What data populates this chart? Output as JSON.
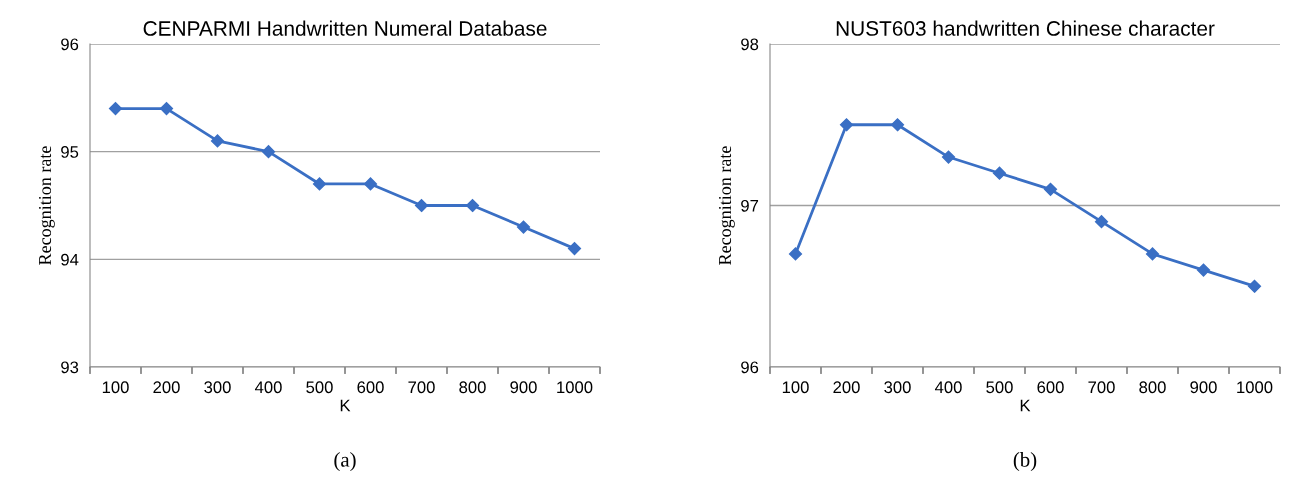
{
  "chart_data": [
    {
      "type": "line",
      "title": "CENPARMI Handwritten Numeral Database",
      "xlabel": "K",
      "ylabel": "Recognition rate",
      "annotations": [
        "(a)"
      ],
      "categories": [
        "100",
        "200",
        "300",
        "400",
        "500",
        "600",
        "700",
        "800",
        "900",
        "1000"
      ],
      "series": [
        {
          "color": "#3a6fc4",
          "values": [
            95.4,
            95.4,
            95.1,
            95.0,
            94.7,
            94.7,
            94.5,
            94.5,
            94.3,
            94.1
          ]
        }
      ],
      "ylim": [
        93,
        96
      ],
      "yticks": [
        93,
        94,
        95,
        96
      ],
      "grid": "y",
      "marker": "diamond",
      "line_style": "solid"
    },
    {
      "type": "line",
      "title": "NUST603 handwritten Chinese character",
      "xlabel": "K",
      "ylabel": "Recognition rate",
      "annotations": [
        "(b)"
      ],
      "categories": [
        "100",
        "200",
        "300",
        "400",
        "500",
        "600",
        "700",
        "800",
        "900",
        "1000"
      ],
      "series": [
        {
          "color": "#3a6fc4",
          "values": [
            96.7,
            97.5,
            97.5,
            97.3,
            97.2,
            97.1,
            96.9,
            96.7,
            96.6,
            96.5
          ]
        }
      ],
      "ylim": [
        96,
        98
      ],
      "yticks": [
        96,
        97,
        98
      ],
      "grid": "y",
      "marker": "diamond",
      "line_style": "solid"
    }
  ]
}
